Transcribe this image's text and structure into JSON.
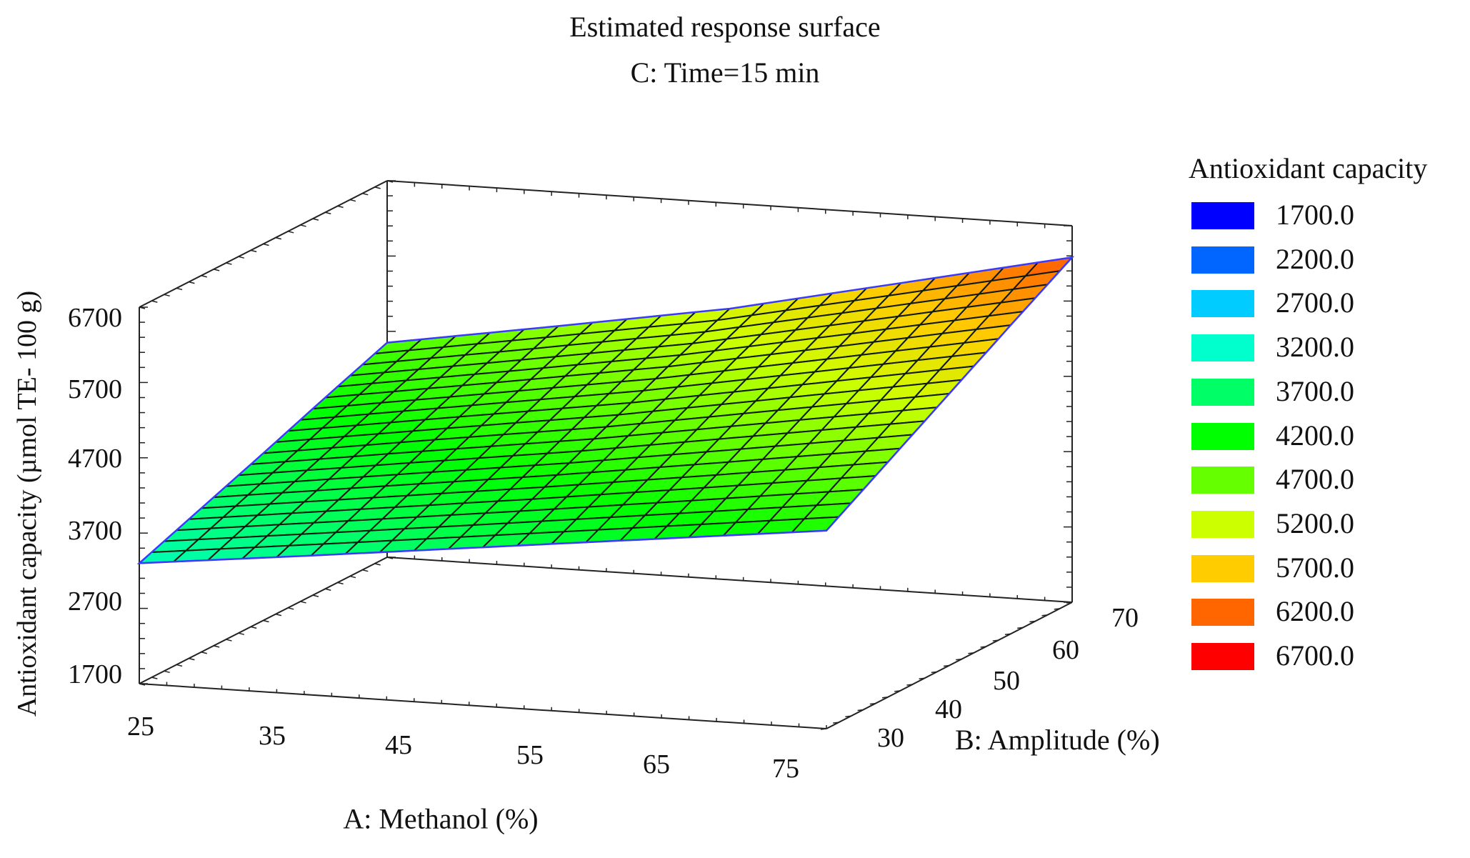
{
  "header": {
    "title": "Estimated response surface",
    "subtitle": "C: Time=15 min"
  },
  "legend": {
    "title": "Antioxidant capacity",
    "items": [
      {
        "label": "1700.0",
        "color": "#0000ff"
      },
      {
        "label": "2200.0",
        "color": "#0066ff"
      },
      {
        "label": "2700.0",
        "color": "#00ccff"
      },
      {
        "label": "3200.0",
        "color": "#00ffcc"
      },
      {
        "label": "3700.0",
        "color": "#00ff66"
      },
      {
        "label": "4200.0",
        "color": "#00ff00"
      },
      {
        "label": "4700.0",
        "color": "#66ff00"
      },
      {
        "label": "5200.0",
        "color": "#ccff00"
      },
      {
        "label": "5700.0",
        "color": "#ffcc00"
      },
      {
        "label": "6200.0",
        "color": "#ff6600"
      },
      {
        "label": "6700.0",
        "color": "#ff0000"
      }
    ]
  },
  "axes": {
    "x_title": "A: Methanol (%)",
    "y_title": "B: Amplitude (%)",
    "z_title": "Antioxidant capacity (µmol TE- 100 g)",
    "x_ticks": [
      "25",
      "35",
      "45",
      "55",
      "65",
      "75"
    ],
    "y_ticks": [
      "30",
      "40",
      "50",
      "60",
      "70"
    ],
    "z_ticks": [
      "1700",
      "2700",
      "3700",
      "4700",
      "5700",
      "6700"
    ]
  },
  "chart_data": {
    "type": "surface3d",
    "title": "Estimated response surface",
    "subtitle": "C: Time=15 min",
    "xlabel": "A: Methanol (%)",
    "ylabel": "B: Amplitude (%)",
    "zlabel": "Antioxidant capacity (µmol TE- 100 g)",
    "xlim": [
      25,
      75
    ],
    "ylim": [
      30,
      70
    ],
    "zlim": [
      1700,
      6700
    ],
    "x_ticks": [
      25,
      35,
      45,
      55,
      65,
      75
    ],
    "y_ticks": [
      30,
      40,
      50,
      60,
      70
    ],
    "z_ticks": [
      1700,
      2700,
      3700,
      4700,
      5700,
      6700
    ],
    "fixed_factor": "C: Time = 15 min",
    "grid_x": [
      25,
      37.5,
      50,
      62.5,
      75
    ],
    "grid_y": [
      30,
      40,
      50,
      60,
      70
    ],
    "z_values": [
      [
        3300,
        3550,
        3810,
        4070,
        4330
      ],
      [
        3610,
        3900,
        4190,
        4500,
        4820
      ],
      [
        3920,
        4250,
        4570,
        4940,
        5310
      ],
      [
        4240,
        4590,
        4950,
        5370,
        5800
      ],
      [
        4550,
        4920,
        5300,
        5790,
        6280
      ]
    ],
    "colorbar": {
      "levels": [
        1700,
        2200,
        2700,
        3200,
        3700,
        4200,
        4700,
        5200,
        5700,
        6200,
        6700
      ],
      "colors": [
        "#0000ff",
        "#0066ff",
        "#00ccff",
        "#00ffcc",
        "#00ff66",
        "#00ff00",
        "#66ff00",
        "#ccff00",
        "#ffcc00",
        "#ff6600",
        "#ff0000"
      ]
    },
    "legend_position": "right",
    "mesh": {
      "nx": 20,
      "ny": 20
    }
  }
}
